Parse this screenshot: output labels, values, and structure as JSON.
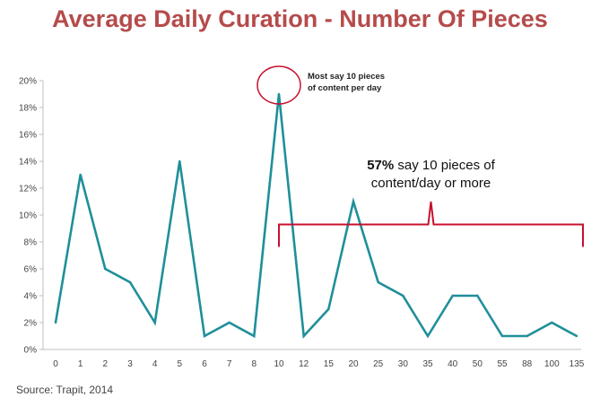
{
  "title": "Average Daily Curation - Number Of Pieces",
  "source": "Source: Trapit, 2014",
  "colors": {
    "title": "#b54b4b",
    "line": "#1f8f9a",
    "annotation": "#c8102e"
  },
  "annotations": {
    "peak_line1": "Most say 10 pieces",
    "peak_line2": "of content per day",
    "bracket_bold": "57%",
    "bracket_rest": " say 10 pieces of",
    "bracket_line2": "content/day or more"
  },
  "chart_data": {
    "type": "line",
    "categories": [
      "0",
      "1",
      "2",
      "3",
      "4",
      "5",
      "6",
      "7",
      "8",
      "10",
      "12",
      "15",
      "20",
      "25",
      "30",
      "35",
      "40",
      "50",
      "55",
      "88",
      "100",
      "135"
    ],
    "values": [
      2,
      13,
      6,
      5,
      2,
      14,
      1,
      2,
      1,
      19,
      1,
      3,
      11,
      5,
      4,
      1,
      4,
      4,
      1,
      1,
      2,
      1
    ],
    "ylim": [
      0,
      20
    ],
    "yticks": [
      "0%",
      "2%",
      "4%",
      "6%",
      "8%",
      "10%",
      "12%",
      "14%",
      "16%",
      "18%",
      "20%"
    ],
    "grid": false
  }
}
